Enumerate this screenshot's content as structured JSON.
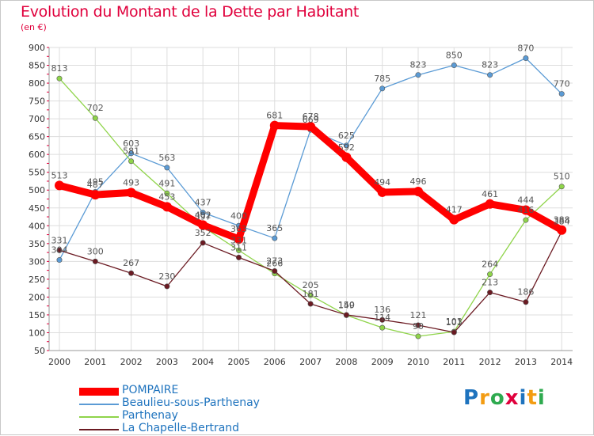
{
  "title": "Evolution du Montant de la Dette par Habitant",
  "unit": "(en €)",
  "logo": {
    "letters": [
      "P",
      "r",
      "o",
      "x",
      "i",
      "t",
      "i"
    ],
    "colors": [
      "#1e73be",
      "#f39c12",
      "#2eaa4f",
      "#e0003c",
      "#1e73be",
      "#f39c12",
      "#2eaa4f"
    ]
  },
  "chart_data": {
    "type": "line",
    "x": [
      "2000",
      "2001",
      "2002",
      "2003",
      "2004",
      "2005",
      "2006",
      "2007",
      "2008",
      "2009",
      "2010",
      "2011",
      "2012",
      "2013",
      "2014"
    ],
    "ylim": [
      50,
      900
    ],
    "yticks": [
      50,
      100,
      150,
      200,
      250,
      300,
      350,
      400,
      450,
      500,
      550,
      600,
      650,
      700,
      750,
      800,
      850,
      900
    ],
    "grid": true,
    "legend_position": "bottom-left",
    "series": [
      {
        "name": "POMPAIRE",
        "color": "#ff0000",
        "values": [
          513,
          487,
          493,
          453,
          402,
          363,
          681,
          678,
          592,
          494,
          496,
          417,
          461,
          444,
          388
        ]
      },
      {
        "name": "Beaulieu-sous-Parthenay",
        "color": "#5b9bd5",
        "values": [
          304,
          495,
          603,
          563,
          437,
          400,
          365,
          669,
          625,
          785,
          823,
          850,
          823,
          870,
          770
        ]
      },
      {
        "name": "Parthenay",
        "color": "#8fd44a",
        "values": [
          813,
          702,
          581,
          491,
          397,
          331,
          266,
          205,
          149,
          114,
          90,
          103,
          264,
          416,
          510
        ]
      },
      {
        "name": "La Chapelle-Bertrand",
        "color": "#6b1a22",
        "values": [
          331,
          300,
          267,
          230,
          352,
          311,
          273,
          181,
          150,
          136,
          121,
          101,
          213,
          186,
          384
        ]
      }
    ]
  }
}
